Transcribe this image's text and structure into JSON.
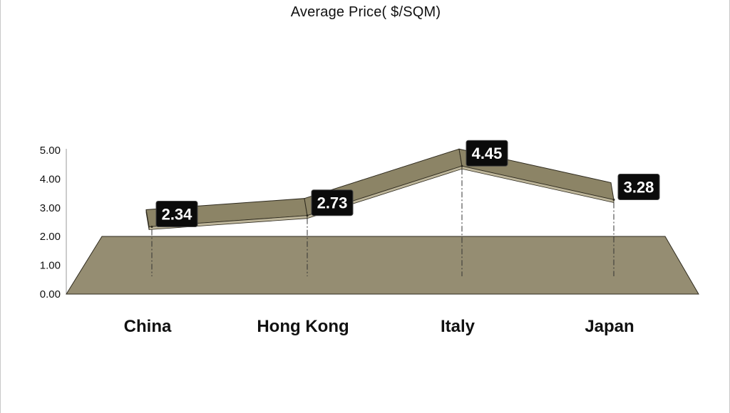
{
  "chart_data": {
    "type": "line",
    "title": "Average Price( $/SQM)",
    "xlabel": "",
    "ylabel": "",
    "categories": [
      "China",
      "Hong Kong",
      "Italy",
      "Japan"
    ],
    "series": [
      {
        "values": [
          2.34,
          2.73,
          4.45,
          3.28
        ]
      }
    ],
    "data_labels": [
      "2.34",
      "2.73",
      "4.45",
      "3.28"
    ],
    "yticks": [
      "0.00",
      "1.00",
      "2.00",
      "3.00",
      "4.00",
      "5.00"
    ],
    "ylim": [
      0,
      5
    ],
    "grid": false,
    "legend": "none",
    "style": "3d-line",
    "colors": {
      "ribbon_top": "#8c8466",
      "ribbon_front": "#bdb59a",
      "floor": "#958d72",
      "edge": "#2e2a1e",
      "label_bg": "#0b0b0b",
      "label_text": "#ffffff"
    }
  }
}
